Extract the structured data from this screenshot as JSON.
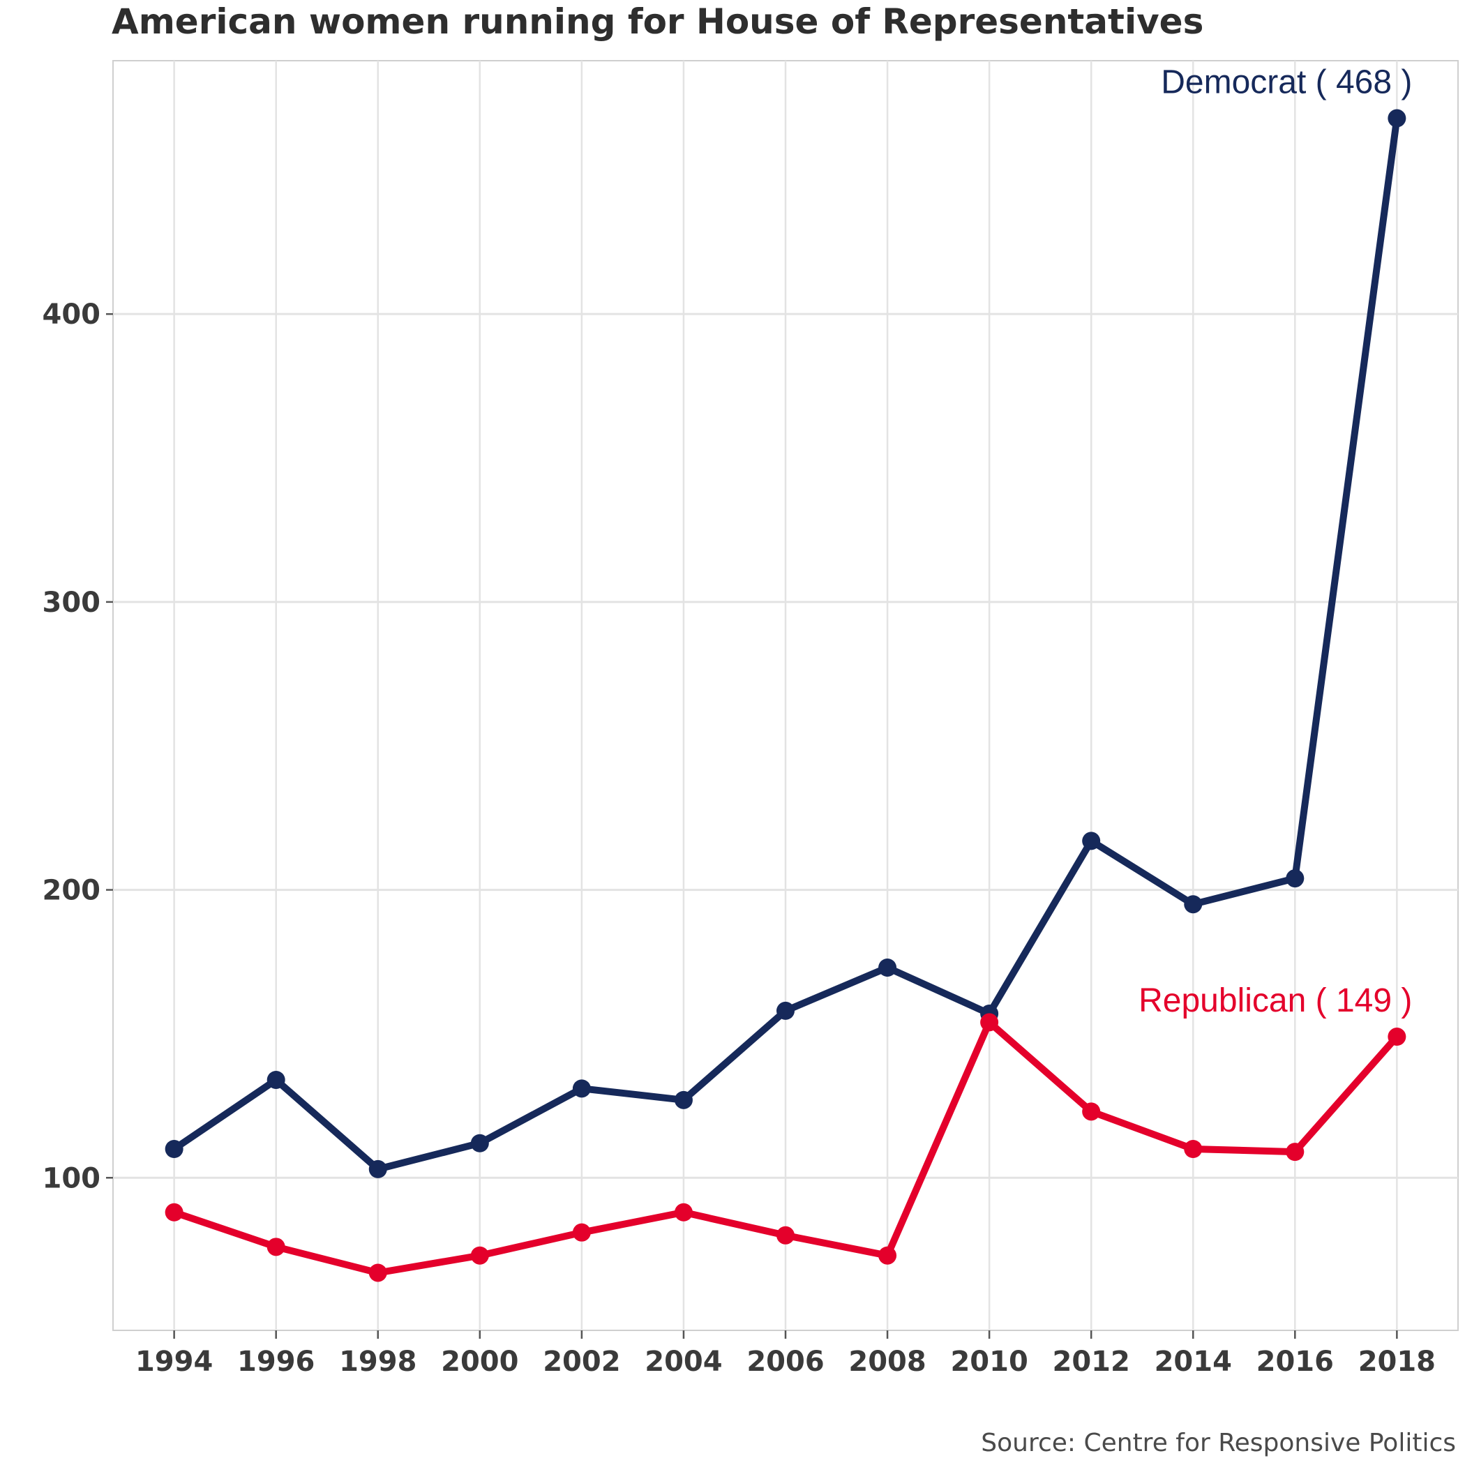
{
  "chart_data": {
    "type": "line",
    "title": "American women running for House of Representatives",
    "caption": "Source: Centre for Responsive Politics",
    "xlabel": "",
    "ylabel": "",
    "x": [
      1994,
      1996,
      1998,
      2000,
      2002,
      2004,
      2006,
      2008,
      2010,
      2012,
      2014,
      2016,
      2018
    ],
    "x_ticks": [
      "1994",
      "1996",
      "1998",
      "2000",
      "2002",
      "2004",
      "2006",
      "2008",
      "2010",
      "2012",
      "2014",
      "2016",
      "2018"
    ],
    "xlim": [
      1992.8,
      2019.2
    ],
    "ylim": [
      47,
      488
    ],
    "y_ticks": [
      100,
      200,
      300,
      400
    ],
    "y_tick_labels": [
      "100",
      "200",
      "300",
      "400"
    ],
    "grid": true,
    "legend": "none",
    "series": [
      {
        "name": "Democrat",
        "label": "Democrat ( 468 )",
        "color": "#16295a",
        "values": [
          110,
          134,
          103,
          112,
          131,
          127,
          158,
          173,
          157,
          217,
          195,
          204,
          468
        ]
      },
      {
        "name": "Republican",
        "label": "Republican ( 149 )",
        "color": "#e4002b",
        "values": [
          88,
          76,
          67,
          73,
          81,
          88,
          80,
          73,
          154,
          123,
          110,
          109,
          149
        ]
      }
    ]
  }
}
